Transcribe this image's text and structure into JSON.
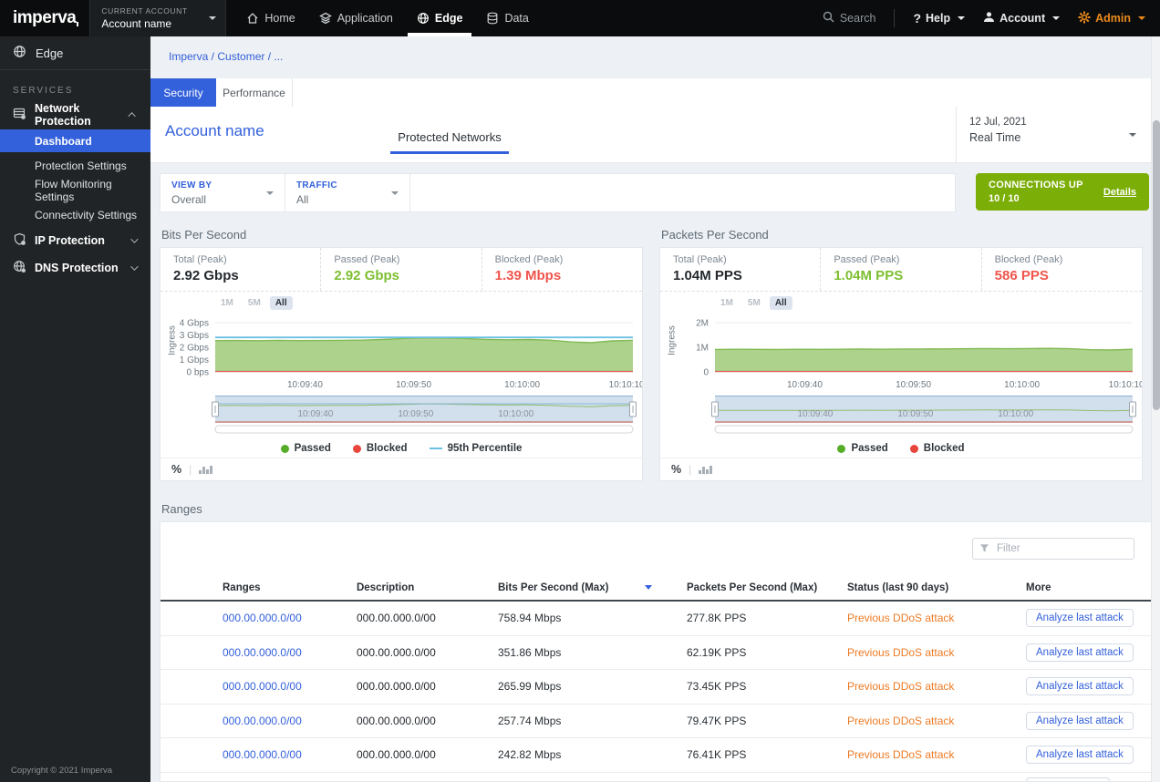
{
  "colors": {
    "accent": "#3360DB",
    "green": "#7CAE08",
    "passed_green": "#7DBE30",
    "blocked_red": "#F0544C",
    "orange_link": "#ED7A23",
    "admin_orange": "#EA8A1C"
  },
  "topbar": {
    "logo": "imperva",
    "account_switcher": {
      "label": "CURRENT ACCOUNT",
      "value": "Account name"
    },
    "nav": [
      {
        "label": "Home"
      },
      {
        "label": "Application"
      },
      {
        "label": "Edge",
        "active": true
      },
      {
        "label": "Data"
      }
    ],
    "search_label": "Search",
    "help_label": "Help",
    "account_label": "Account",
    "admin_label": "Admin"
  },
  "sidebar": {
    "product": "Edge",
    "section_label": "SERVICES",
    "groups": [
      {
        "label": "Network Protection",
        "expanded": true,
        "items": [
          {
            "label": "Dashboard",
            "active": true
          },
          {
            "label": "Protection Settings"
          },
          {
            "label": "Flow Monitoring Settings"
          },
          {
            "label": "Connectivity Settings"
          }
        ]
      },
      {
        "label": "IP Protection",
        "expanded": false
      },
      {
        "label": "DNS Protection",
        "expanded": false
      }
    ],
    "copyright": "Copyright © 2021 Imperva"
  },
  "breadcrumb": "Imperva / Customer / ...",
  "tabs": [
    {
      "label": "Security",
      "active": true
    },
    {
      "label": "Performance",
      "active": false
    }
  ],
  "header": {
    "title": "Account name",
    "subtab": "Protected Networks",
    "date": "12 Jul, 2021",
    "mode": "Real Time"
  },
  "filters": [
    {
      "label": "VIEW BY",
      "value": "Overall"
    },
    {
      "label": "TRAFFIC",
      "value": "All"
    }
  ],
  "connections": {
    "title": "CONNECTIONS UP",
    "value": "10 / 10",
    "link": "Details"
  },
  "chart_data": [
    {
      "type": "area",
      "title": "Bits Per Second",
      "stats": [
        {
          "label": "Total (Peak)",
          "value": "2.92 Gbps"
        },
        {
          "label": "Passed (Peak)",
          "value": "2.92 Gbps"
        },
        {
          "label": "Blocked (Peak)",
          "value": "1.39 Mbps"
        }
      ],
      "range_buttons": [
        "1M",
        "5M",
        "All"
      ],
      "active_range": "All",
      "ylabel": "Ingress",
      "ymax": 4,
      "yticks": [
        {
          "v": 4,
          "label": "4 Gbps"
        },
        {
          "v": 3,
          "label": "3 Gbps"
        },
        {
          "v": 2,
          "label": "2 Gbps"
        },
        {
          "v": 1,
          "label": "1 Gbps"
        },
        {
          "v": 0,
          "label": "0 bps"
        }
      ],
      "xticks": [
        {
          "pos": 0.215,
          "label": "10:09:40"
        },
        {
          "pos": 0.475,
          "label": "10:09:50"
        },
        {
          "pos": 0.735,
          "label": "10:10:00"
        },
        {
          "pos": 0.985,
          "label": "10:10:10"
        }
      ],
      "nav_xticks": [
        {
          "pos": 0.24,
          "label": "10:09:40"
        },
        {
          "pos": 0.48,
          "label": "10:09:50"
        },
        {
          "pos": 0.72,
          "label": "10:10:00"
        }
      ],
      "series": [
        {
          "name": "Passed",
          "unit": "Gbps",
          "values": [
            2.54,
            2.55,
            2.53,
            2.56,
            2.54,
            2.55,
            2.56,
            2.58,
            2.63,
            2.71,
            2.76,
            2.75,
            2.7,
            2.64,
            2.61,
            2.63,
            2.58,
            2.44,
            2.37,
            2.52,
            2.56
          ]
        },
        {
          "name": "Blocked",
          "unit": "Gbps",
          "values": [
            0,
            0,
            0,
            0,
            0,
            0,
            0,
            0,
            0,
            0,
            0,
            0,
            0,
            0,
            0,
            0,
            0,
            0,
            0,
            0,
            0
          ]
        }
      ],
      "percentile": 2.8,
      "percentile_color": "#6CC0E2",
      "area_fill": "#ACD28C",
      "area_stroke": "#83BA55",
      "legend": [
        {
          "label": "Passed",
          "color": "#56AD27",
          "marker": "dot"
        },
        {
          "label": "Blocked",
          "color": "#E8453C",
          "marker": "dot"
        },
        {
          "label": "95th Percentile",
          "color": "#6CC0E2",
          "marker": "line"
        }
      ],
      "footer_unit": "%"
    },
    {
      "type": "area",
      "title": "Packets Per Second",
      "stats": [
        {
          "label": "Total (Peak)",
          "value": "1.04M PPS"
        },
        {
          "label": "Passed (Peak)",
          "value": "1.04M PPS"
        },
        {
          "label": "Blocked (Peak)",
          "value": "586 PPS"
        }
      ],
      "range_buttons": [
        "1M",
        "5M",
        "All"
      ],
      "active_range": "All",
      "ylabel": "Ingress",
      "ymax": 2,
      "yticks": [
        {
          "v": 2,
          "label": "2M"
        },
        {
          "v": 1,
          "label": "1M"
        },
        {
          "v": 0,
          "label": "0"
        }
      ],
      "xticks": [
        {
          "pos": 0.215,
          "label": "10:09:40"
        },
        {
          "pos": 0.475,
          "label": "10:09:50"
        },
        {
          "pos": 0.735,
          "label": "10:10:00"
        },
        {
          "pos": 0.985,
          "label": "10:10:10"
        }
      ],
      "nav_xticks": [
        {
          "pos": 0.24,
          "label": "10:09:40"
        },
        {
          "pos": 0.48,
          "label": "10:09:50"
        },
        {
          "pos": 0.72,
          "label": "10:10:00"
        }
      ],
      "series": [
        {
          "name": "Passed",
          "unit": "M PPS",
          "values": [
            0.91,
            0.92,
            0.915,
            0.91,
            0.92,
            0.915,
            0.92,
            0.925,
            0.92,
            0.93,
            0.93,
            0.935,
            0.94,
            0.95,
            0.94,
            0.95,
            0.955,
            0.94,
            0.9,
            0.89,
            0.92
          ]
        },
        {
          "name": "Blocked",
          "unit": "M PPS",
          "values": [
            0,
            0,
            0,
            0,
            0,
            0,
            0,
            0,
            0,
            0,
            0,
            0,
            0,
            0,
            0,
            0,
            0,
            0,
            0,
            0,
            0
          ]
        }
      ],
      "percentile": null,
      "percentile_color": "#6CC0E2",
      "area_fill": "#ACD28C",
      "area_stroke": "#83BA55",
      "legend": [
        {
          "label": "Passed",
          "color": "#56AD27",
          "marker": "dot"
        },
        {
          "label": "Blocked",
          "color": "#E8453C",
          "marker": "dot"
        }
      ],
      "footer_unit": "%"
    }
  ],
  "ranges": {
    "title": "Ranges",
    "filter_placeholder": "Filter",
    "columns": [
      "Ranges",
      "Description",
      "Bits Per Second (Max)",
      "Packets Per Second (Max)",
      "Status (last 90 days)",
      "More"
    ],
    "sorted_column": "Bits Per Second (Max)",
    "rows": [
      {
        "range": "000.00.000.0/00",
        "description": "000.00.000.0/00",
        "bps": "758.94 Mbps",
        "pps": "277.8K PPS",
        "status": "Previous DDoS attack",
        "action": "Analyze last attack"
      },
      {
        "range": "000.00.000.0/00",
        "description": "000.00.000.0/00",
        "bps": "351.86 Mbps",
        "pps": "62.19K PPS",
        "status": "Previous DDoS attack",
        "action": "Analyze last attack"
      },
      {
        "range": "000.00.000.0/00",
        "description": "000.00.000.0/00",
        "bps": "265.99 Mbps",
        "pps": "73.45K PPS",
        "status": "Previous DDoS attack",
        "action": "Analyze last attack"
      },
      {
        "range": "000.00.000.0/00",
        "description": "000.00.000.0/00",
        "bps": "257.74 Mbps",
        "pps": "79.47K PPS",
        "status": "Previous DDoS attack",
        "action": "Analyze last attack"
      },
      {
        "range": "000.00.000.0/00",
        "description": "000.00.000.0/00",
        "bps": "242.82 Mbps",
        "pps": "76.41K PPS",
        "status": "Previous DDoS attack",
        "action": "Analyze last attack"
      }
    ],
    "has_partial_sixth_row": true
  }
}
